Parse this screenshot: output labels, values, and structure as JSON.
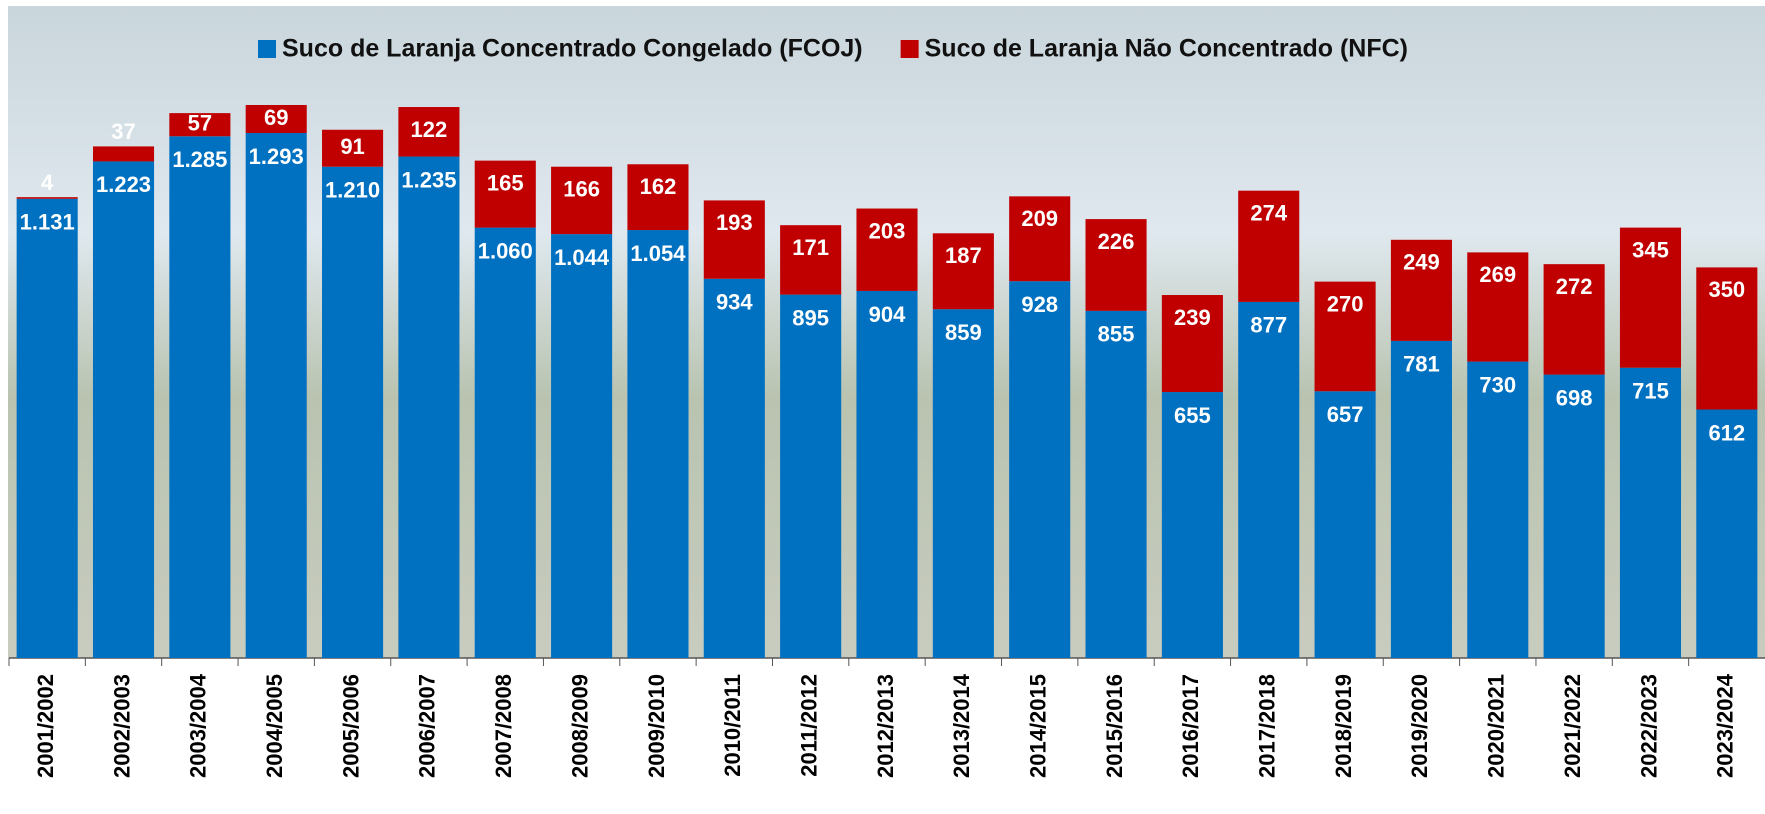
{
  "chart_data": {
    "type": "stacked_bar",
    "categories": [
      "2001/2002",
      "2002/2003",
      "2003/2004",
      "2004/2005",
      "2005/2006",
      "2006/2007",
      "2007/2008",
      "2008/2009",
      "2009/2010",
      "2010/2011",
      "2011/2012",
      "2012/2013",
      "2013/2014",
      "2014/2015",
      "2015/2016",
      "2016/2017",
      "2017/2018",
      "2018/2019",
      "2019/2020",
      "2020/2021",
      "2021/2022",
      "2022/2023",
      "2023/2024"
    ],
    "series": [
      {
        "name": "Suco de Laranja Concentrado Congelado (FCOJ)",
        "color": "#0070c0",
        "values": [
          1131,
          1223,
          1285,
          1293,
          1210,
          1235,
          1060,
          1044,
          1054,
          934,
          895,
          904,
          859,
          928,
          855,
          655,
          877,
          657,
          781,
          730,
          698,
          715,
          612
        ],
        "value_labels": [
          "1.131",
          "1.223",
          "1.285",
          "1.293",
          "1.210",
          "1.235",
          "1.060",
          "1.044",
          "1.054",
          "934",
          "895",
          "904",
          "859",
          "928",
          "855",
          "655",
          "877",
          "657",
          "781",
          "730",
          "698",
          "715",
          "612"
        ]
      },
      {
        "name": "Suco de Laranja Não Concentrado (NFC)",
        "color": "#c00000",
        "values": [
          4,
          37,
          57,
          69,
          91,
          122,
          165,
          166,
          162,
          193,
          171,
          203,
          187,
          209,
          226,
          239,
          274,
          270,
          249,
          269,
          272,
          345,
          350
        ]
      }
    ]
  }
}
